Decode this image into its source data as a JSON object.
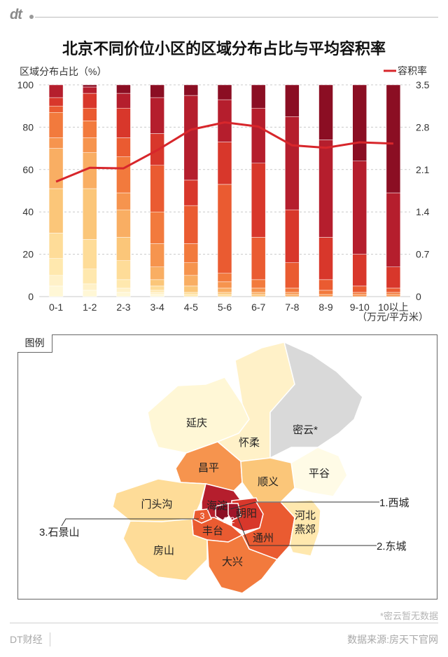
{
  "header": {
    "logo": "dt"
  },
  "chart_data": {
    "type": "bar",
    "title": "北京不同价位小区的区域分布占比与平均容积率",
    "ylabel": "区域分布占比（%）",
    "y2label": "容积率",
    "ylim": [
      0,
      100
    ],
    "y2lim": [
      0,
      3.5
    ],
    "yticks": [
      "0",
      "20",
      "40",
      "60",
      "80",
      "100"
    ],
    "y2ticks": [
      "0",
      "0.7",
      "1.4",
      "2.1",
      "2.8",
      "3.5"
    ],
    "categories": [
      "0-1",
      "1-2",
      "2-3",
      "3-4",
      "4-5",
      "5-6",
      "6-7",
      "7-8",
      "8-9",
      "9-10",
      "10以上"
    ],
    "xunit": "（万元/平方米）",
    "stack_colors": [
      "#fff7d6",
      "#fff1c8",
      "#ffe8ae",
      "#fedc98",
      "#fbc679",
      "#f9ae63",
      "#f6944e",
      "#f27a3d",
      "#ea5b31",
      "#d8372b",
      "#b51e2d",
      "#8b0e23"
    ],
    "stacked_values": [
      [
        5,
        5,
        8,
        12,
        21,
        19,
        5,
        12,
        3,
        4,
        6,
        0
      ],
      [
        3,
        3,
        7,
        14,
        24,
        17,
        7,
        8,
        6,
        7,
        3,
        1
      ],
      [
        2,
        2,
        4,
        9,
        11,
        13,
        8,
        17,
        9,
        14,
        7,
        4
      ],
      [
        1,
        1,
        1,
        2,
        3,
        6,
        11,
        15,
        22,
        15,
        17,
        6
      ],
      [
        0,
        0,
        1,
        1,
        3,
        5,
        6,
        9,
        18,
        12,
        40,
        5
      ],
      [
        0,
        0,
        0,
        1,
        1,
        2,
        3,
        4,
        42,
        20,
        20,
        7
      ],
      [
        0,
        0,
        0,
        0,
        1,
        1,
        2,
        4,
        20,
        35,
        26,
        11
      ],
      [
        0,
        0,
        0,
        0,
        0,
        1,
        1,
        2,
        12,
        25,
        44,
        15
      ],
      [
        0,
        0,
        0,
        0,
        0,
        0,
        1,
        2,
        5,
        20,
        46,
        26
      ],
      [
        0,
        0,
        0,
        0,
        0,
        0,
        1,
        1,
        3,
        15,
        44,
        36
      ],
      [
        0,
        0,
        0,
        0,
        0,
        0,
        1,
        1,
        2,
        10,
        35,
        51
      ]
    ],
    "line_series": {
      "name": "容积率",
      "color": "#d7262b",
      "values": [
        1.9,
        2.13,
        2.12,
        2.42,
        2.76,
        2.88,
        2.81,
        2.5,
        2.46,
        2.55,
        2.53
      ]
    }
  },
  "map": {
    "legend_label": "图例",
    "districts": {
      "yanqing": "延庆",
      "huairou": "怀柔",
      "miyun": "密云*",
      "pinggu": "平谷",
      "changping": "昌平",
      "shunyi": "顺义",
      "mentougou": "门头沟",
      "haidian": "海淀",
      "chaoyang": "朝阳",
      "fengtai": "丰台",
      "tongzhou": "通州",
      "fangshan": "房山",
      "daxing": "大兴",
      "hebei1": "河北",
      "hebei2": "燕郊",
      "num3": "3",
      "num12": "1 2"
    },
    "callouts": {
      "xicheng": "1.西城",
      "dongcheng": "2.东城",
      "shijingshan": "3.石景山"
    },
    "colors": {
      "yanqing": "#fff7d6",
      "huairou": "#fff1c8",
      "miyun": "#d9d9d9",
      "pinggu": "#fffbe6",
      "changping": "#f6944e",
      "shunyi": "#fbc679",
      "mentougou": "#fedc98",
      "haidian": "#b51e2d",
      "chaoyang": "#d8372b",
      "fengtai": "#ea5b31",
      "tongzhou": "#ea5b31",
      "fangshan": "#fedc98",
      "daxing": "#f27a3d",
      "hebei": "#ffe8ae",
      "xicheng": "#8b0e23",
      "dongcheng": "#a0152a",
      "shijingshan": "#ea5b31"
    }
  },
  "footer": {
    "note": "*密云暂无数据",
    "brand": "DT财经",
    "source": "数据来源:房天下官网"
  }
}
